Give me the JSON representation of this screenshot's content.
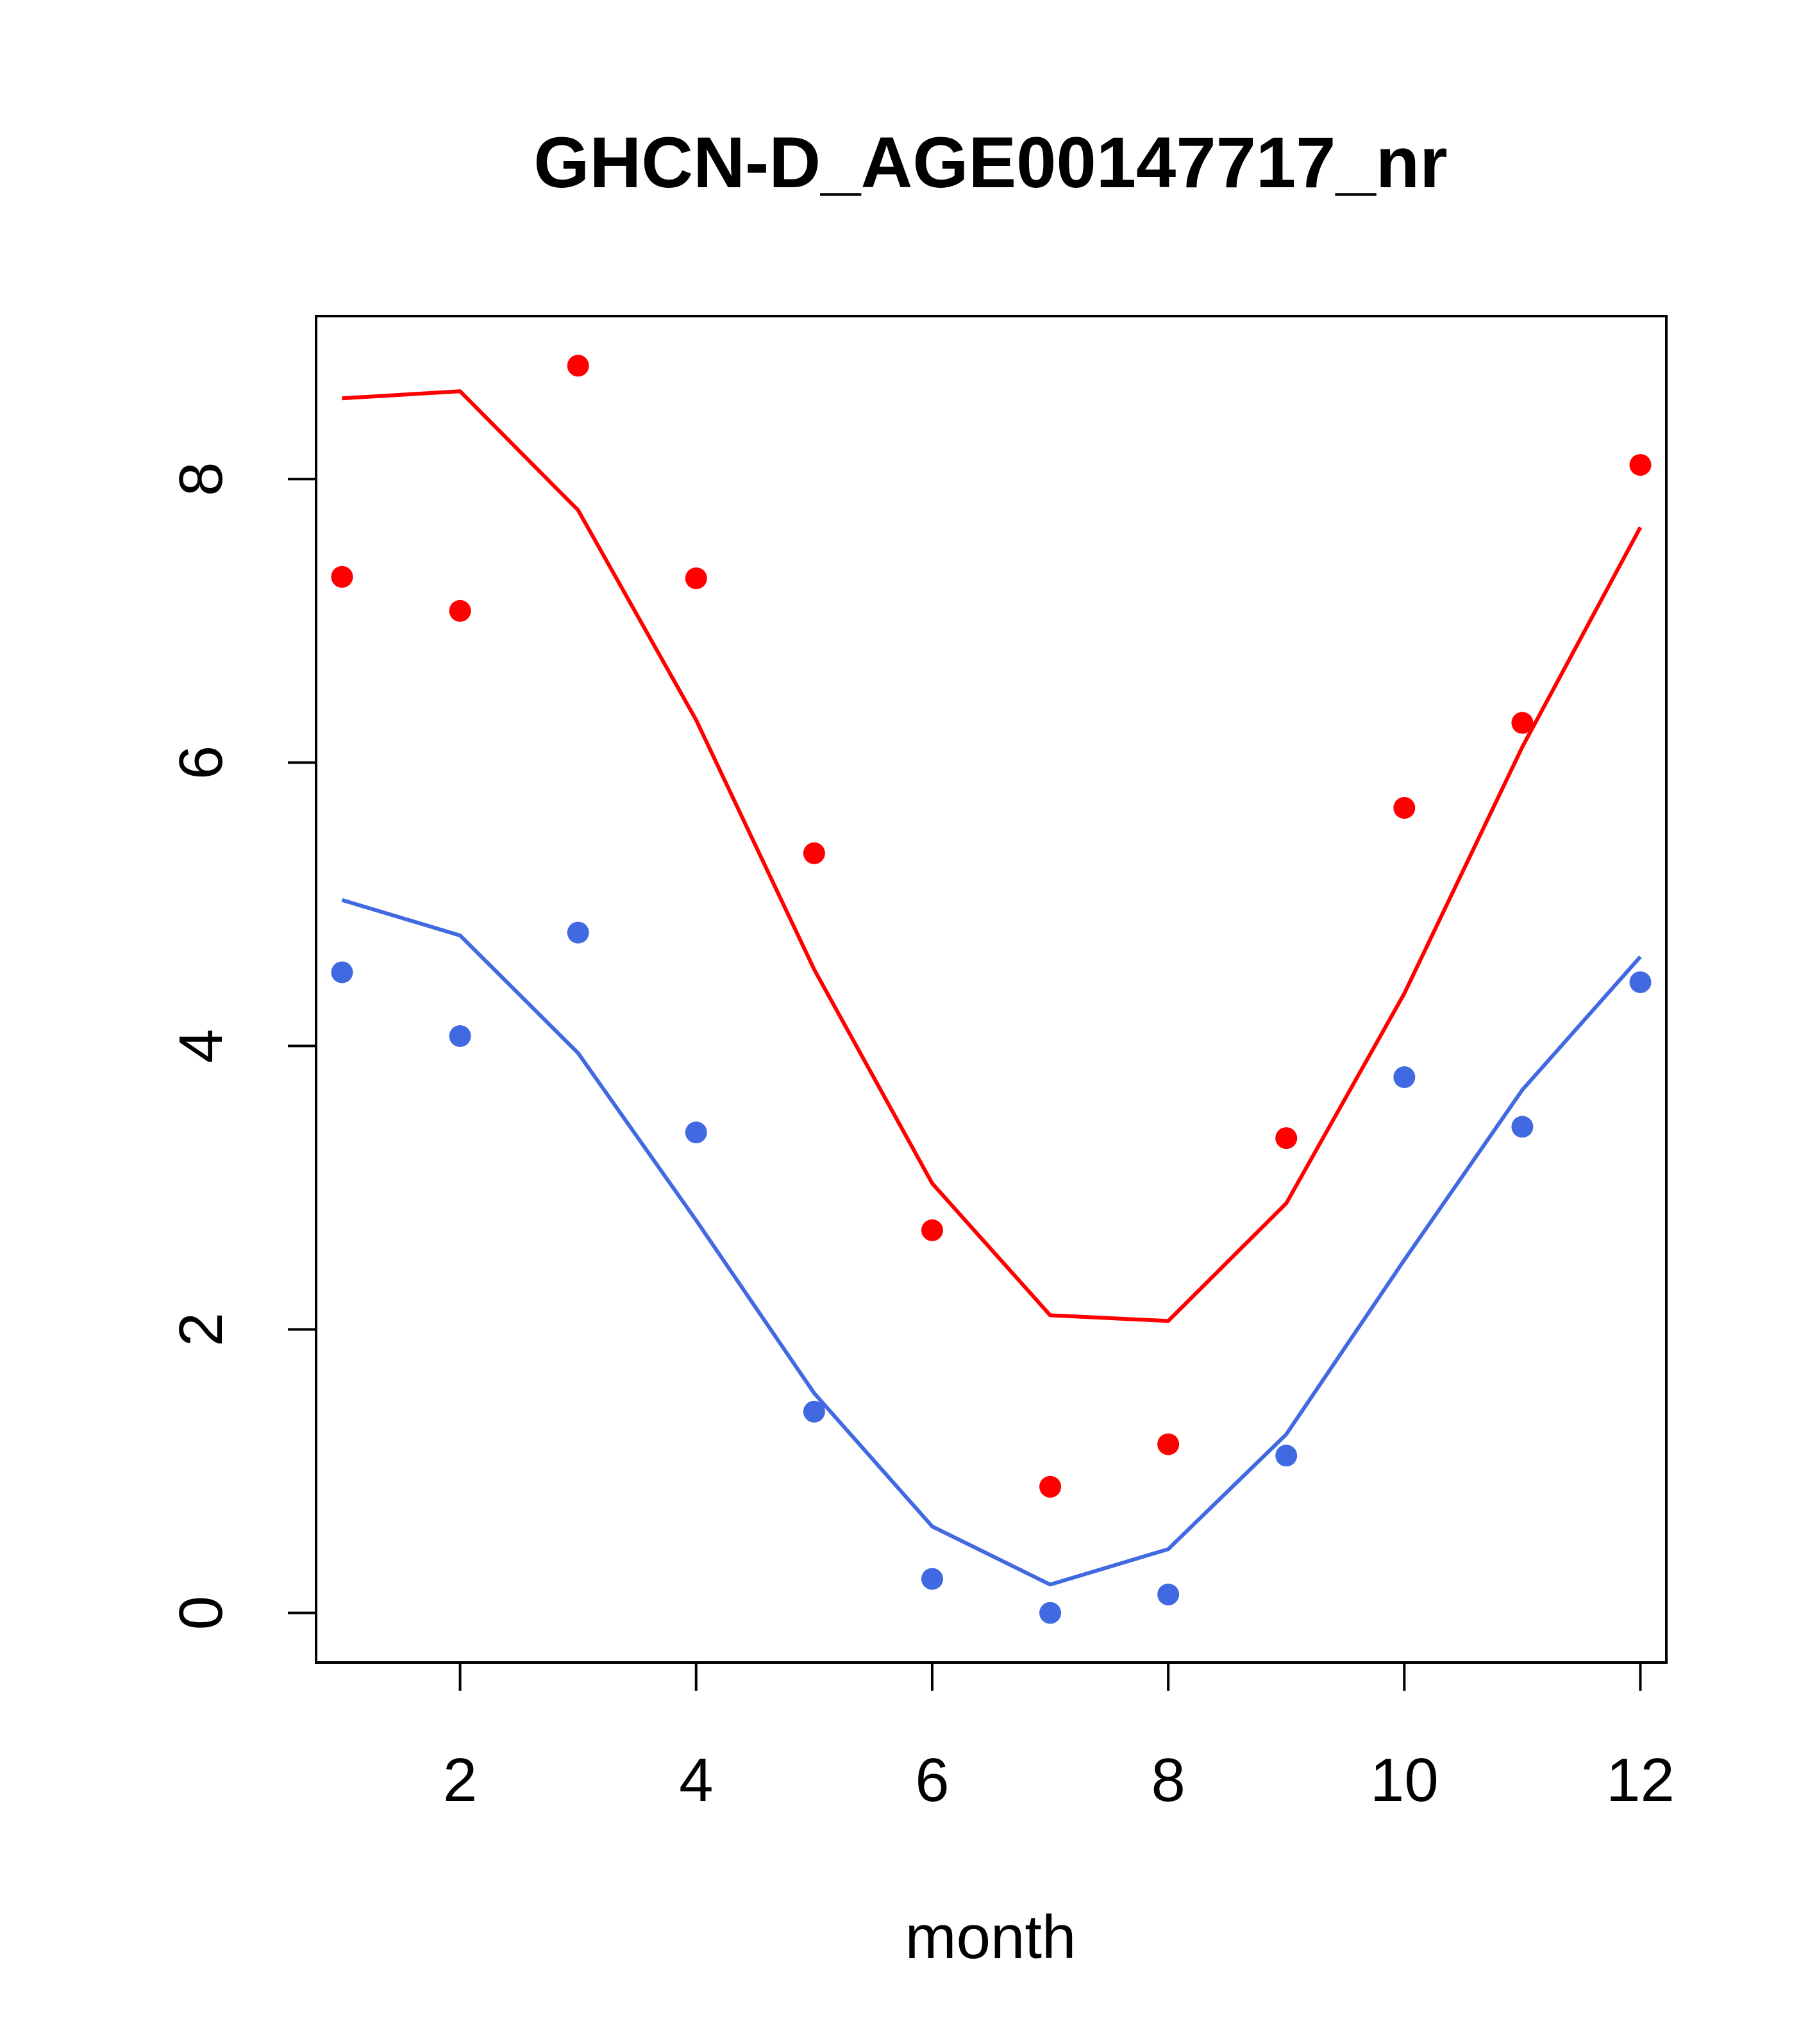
{
  "chart_data": {
    "type": "line",
    "title": "GHCN-D_AGE00147717_nr",
    "xlabel": "month",
    "ylabel": "",
    "xlim": [
      0.78,
      12.22
    ],
    "ylim": [
      -0.35,
      9.15
    ],
    "x_ticks": [
      2,
      4,
      6,
      8,
      10,
      12
    ],
    "y_ticks": [
      0,
      2,
      4,
      6,
      8
    ],
    "grid": false,
    "legend": "none",
    "series": [
      {
        "color": "#ff0000",
        "kind": "points",
        "x": [
          1,
          2,
          3,
          4,
          5,
          6,
          7,
          8,
          9,
          10,
          11,
          12
        ],
        "y": [
          7.31,
          7.07,
          8.8,
          7.3,
          5.36,
          2.7,
          0.89,
          1.19,
          3.35,
          5.68,
          6.28,
          8.1
        ]
      },
      {
        "color": "#ff0000",
        "kind": "line",
        "x": [
          1,
          2,
          3,
          4,
          5,
          6,
          7,
          8,
          9,
          10,
          11,
          12
        ],
        "y": [
          8.57,
          8.62,
          7.78,
          6.3,
          4.54,
          3.03,
          2.1,
          2.06,
          2.89,
          4.37,
          6.11,
          7.66
        ]
      },
      {
        "color": "#4169e1",
        "kind": "points",
        "x": [
          1,
          2,
          3,
          4,
          5,
          6,
          7,
          8,
          9,
          10,
          11,
          12
        ],
        "y": [
          4.52,
          4.07,
          4.8,
          3.39,
          1.42,
          0.24,
          0.0,
          0.13,
          1.11,
          3.78,
          3.43,
          4.45
        ]
      },
      {
        "color": "#4169e1",
        "kind": "line",
        "x": [
          1,
          2,
          3,
          4,
          5,
          6,
          7,
          8,
          9,
          10,
          11,
          12
        ],
        "y": [
          5.03,
          4.78,
          3.95,
          2.77,
          1.55,
          0.61,
          0.2,
          0.45,
          1.26,
          2.49,
          3.69,
          4.63
        ]
      }
    ]
  }
}
